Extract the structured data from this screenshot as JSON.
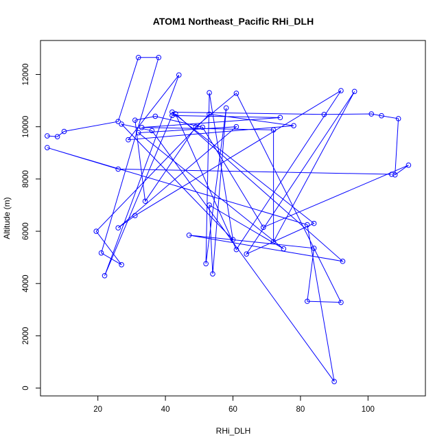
{
  "chart_data": {
    "type": "line",
    "title": "ATOM1 Northeast_Pacific RHi_DLH",
    "xlabel": "RHi_DLH",
    "ylabel": "Altitude (m)",
    "xlim": [
      3,
      117
    ],
    "ylim": [
      -300,
      13300
    ],
    "xticks": [
      20,
      40,
      60,
      80,
      100
    ],
    "yticks": [
      0,
      2000,
      4000,
      6000,
      8000,
      10000,
      12000
    ],
    "grid": false,
    "legend": "none",
    "markers": "open-circle",
    "color": "#0000ff",
    "series": [
      {
        "points": [
          {
            "x": 5,
            "y": 9650
          },
          {
            "x": 8,
            "y": 9620
          },
          {
            "x": 10,
            "y": 9820
          },
          {
            "x": 26,
            "y": 10200
          },
          {
            "x": 32,
            "y": 12650
          },
          {
            "x": 38,
            "y": 12650
          },
          {
            "x": 21,
            "y": 5170
          },
          {
            "x": 27,
            "y": 4720
          },
          {
            "x": 19.5,
            "y": 6000
          },
          {
            "x": 53,
            "y": 10480
          },
          {
            "x": 78,
            "y": 10040
          },
          {
            "x": 29,
            "y": 9500
          },
          {
            "x": 44,
            "y": 11980
          },
          {
            "x": 22,
            "y": 4300
          },
          {
            "x": 42,
            "y": 10430
          },
          {
            "x": 74,
            "y": 10350
          },
          {
            "x": 33,
            "y": 9970
          },
          {
            "x": 72,
            "y": 9880
          },
          {
            "x": 72,
            "y": 5600
          },
          {
            "x": 96,
            "y": 11350
          },
          {
            "x": 64,
            "y": 5130
          },
          {
            "x": 84,
            "y": 6300
          },
          {
            "x": 42,
            "y": 10560
          },
          {
            "x": 87,
            "y": 10470
          },
          {
            "x": 101,
            "y": 10490
          },
          {
            "x": 104,
            "y": 10420
          },
          {
            "x": 109,
            "y": 10310
          },
          {
            "x": 108,
            "y": 8160
          },
          {
            "x": 112,
            "y": 8530
          },
          {
            "x": 69,
            "y": 6150
          },
          {
            "x": 51,
            "y": 9980
          },
          {
            "x": 37,
            "y": 10400
          },
          {
            "x": 31,
            "y": 10250
          },
          {
            "x": 34,
            "y": 7150
          },
          {
            "x": 49,
            "y": 10000
          },
          {
            "x": 61,
            "y": 11280
          },
          {
            "x": 92,
            "y": 3280
          },
          {
            "x": 82,
            "y": 3320
          },
          {
            "x": 84,
            "y": 5350
          },
          {
            "x": 47,
            "y": 5850
          },
          {
            "x": 92.5,
            "y": 4850
          },
          {
            "x": 43,
            "y": 10490
          },
          {
            "x": 61,
            "y": 5300
          },
          {
            "x": 92,
            "y": 11380
          },
          {
            "x": 31,
            "y": 6600
          },
          {
            "x": 26,
            "y": 6130
          },
          {
            "x": 61,
            "y": 10000
          },
          {
            "x": 32,
            "y": 9770
          },
          {
            "x": 75,
            "y": 5330
          },
          {
            "x": 53,
            "y": 7000
          },
          {
            "x": 54,
            "y": 4370
          },
          {
            "x": 58,
            "y": 10720
          },
          {
            "x": 52,
            "y": 4760
          },
          {
            "x": 53,
            "y": 11300
          },
          {
            "x": 60,
            "y": 5680
          },
          {
            "x": 27,
            "y": 10100
          },
          {
            "x": 36,
            "y": 9850
          },
          {
            "x": 90,
            "y": 250
          },
          {
            "x": 82,
            "y": 6250
          },
          {
            "x": 5,
            "y": 9200
          },
          {
            "x": 26,
            "y": 8380
          },
          {
            "x": 107,
            "y": 8180
          }
        ]
      }
    ]
  }
}
